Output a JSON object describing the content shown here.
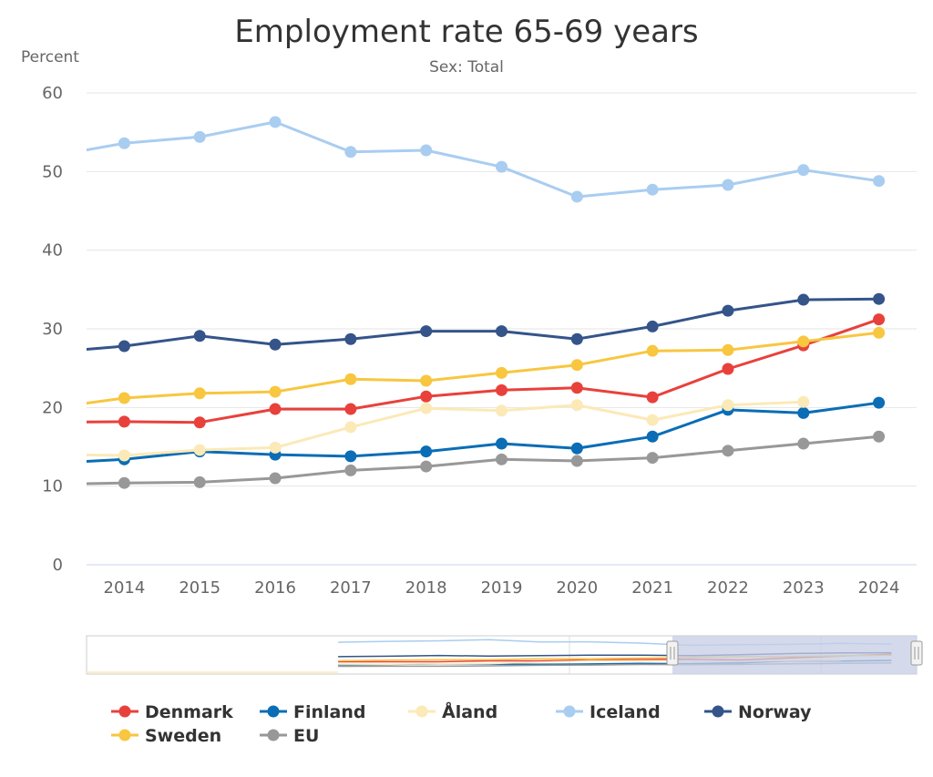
{
  "chart_data": {
    "type": "line",
    "title": "Employment rate 65-69 years",
    "subtitle": "Sex: Total",
    "xlabel": "",
    "ylabel": "Percent",
    "x": [
      2013,
      2014,
      2015,
      2016,
      2017,
      2018,
      2019,
      2020,
      2021,
      2022,
      2023,
      2024
    ],
    "x_tick_labels": [
      "2014",
      "2015",
      "2016",
      "2017",
      "2018",
      "2019",
      "2020",
      "2021",
      "2022",
      "2023",
      "2024"
    ],
    "x_visible_range": [
      2013.5,
      2024.5
    ],
    "ylim": [
      0,
      60
    ],
    "y_ticks": [
      0,
      10,
      20,
      30,
      40,
      50,
      60
    ],
    "grid": true,
    "legend_position": "bottom-left",
    "series": [
      {
        "name": "Denmark",
        "color": "#e8413c",
        "values": [
          18.1,
          18.2,
          18.1,
          19.8,
          19.8,
          21.4,
          22.2,
          22.5,
          21.3,
          24.9,
          27.9,
          31.2
        ]
      },
      {
        "name": "Finland",
        "color": "#0a6db5",
        "values": [
          12.9,
          13.4,
          14.4,
          14.0,
          13.8,
          14.4,
          15.4,
          14.8,
          16.3,
          19.7,
          19.3,
          20.6
        ]
      },
      {
        "name": "Åland",
        "color": "#fbe9b7",
        "values": [
          14.0,
          13.9,
          14.6,
          14.9,
          17.5,
          19.9,
          19.6,
          20.3,
          18.4,
          20.3,
          20.7,
          null
        ]
      },
      {
        "name": "Iceland",
        "color": "#a9cdf0",
        "values": [
          51.9,
          53.6,
          54.4,
          56.3,
          52.5,
          52.7,
          50.6,
          46.8,
          47.7,
          48.3,
          50.2,
          48.8
        ]
      },
      {
        "name": "Norway",
        "color": "#34548a",
        "values": [
          27.0,
          27.8,
          29.1,
          28.0,
          28.7,
          29.7,
          29.7,
          28.7,
          30.3,
          32.3,
          33.7,
          33.8
        ]
      },
      {
        "name": "Sweden",
        "color": "#f8c63f",
        "values": [
          19.9,
          21.2,
          21.8,
          22.0,
          23.6,
          23.4,
          24.4,
          25.4,
          27.2,
          27.3,
          28.4,
          29.5
        ]
      },
      {
        "name": "EU",
        "color": "#989898",
        "values": [
          10.2,
          10.4,
          10.5,
          11.0,
          12.0,
          12.5,
          13.4,
          13.2,
          13.6,
          14.5,
          15.4,
          16.3
        ]
      }
    ],
    "navigator": {
      "full_range": [
        2008,
        2024
      ],
      "selected_range": [
        2013.5,
        2024.5
      ],
      "selection_color": "#c5cde6"
    }
  }
}
